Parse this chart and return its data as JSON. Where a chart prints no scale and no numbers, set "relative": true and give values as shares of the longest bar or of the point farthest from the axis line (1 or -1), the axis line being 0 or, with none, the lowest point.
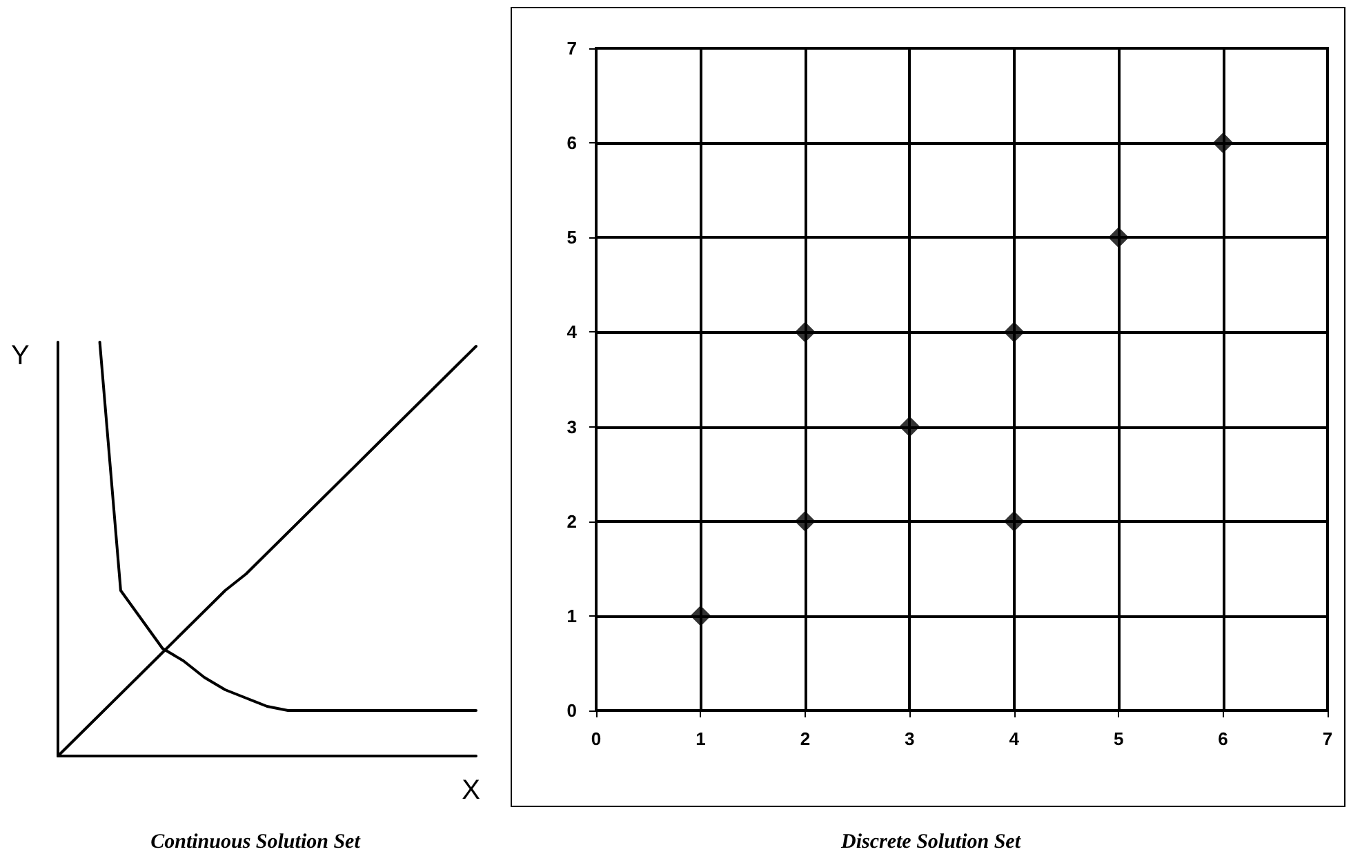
{
  "chart_data": [
    {
      "type": "line",
      "title": "Continuous Solution Set",
      "xlabel": "X",
      "ylabel": "Y",
      "relative": true,
      "marker": "none",
      "line_style": "solid",
      "categories": [
        null,
        null,
        null,
        null,
        null,
        null,
        null,
        null,
        null,
        null,
        null,
        null,
        null,
        null,
        null,
        null,
        null,
        null,
        null,
        null,
        null
      ],
      "series": [
        {
          "color": "#000000",
          "values": [
            null,
            null,
            1.0,
            0.4,
            0.33,
            0.26,
            0.23,
            0.19,
            0.16,
            0.14,
            0.12,
            0.11,
            0.11,
            0.11,
            0.11,
            0.11,
            0.11,
            0.11,
            0.11,
            0.11,
            0.11
          ]
        },
        {
          "color": "#000000",
          "values": [
            0,
            0.05,
            0.1,
            0.15,
            0.2,
            0.25,
            0.3,
            0.35,
            0.4,
            0.44,
            0.49,
            0.54,
            0.59,
            0.64,
            0.69,
            0.74,
            0.79,
            0.84,
            0.89,
            0.94,
            0.99
          ]
        }
      ]
    },
    {
      "type": "scatter",
      "title": "Discrete Solution Set",
      "x": [
        1,
        2,
        2,
        3,
        4,
        4,
        5,
        6
      ],
      "values": [
        1,
        2,
        4,
        3,
        2,
        4,
        5,
        6
      ],
      "color": "#000000",
      "marker": "diamond",
      "xlim": [
        0,
        7
      ],
      "ylim": [
        0,
        7
      ],
      "xticks": [
        0,
        1,
        2,
        3,
        4,
        5,
        6,
        7
      ],
      "yticks": [
        0,
        1,
        2,
        3,
        4,
        5,
        6,
        7
      ],
      "grid": true
    }
  ]
}
